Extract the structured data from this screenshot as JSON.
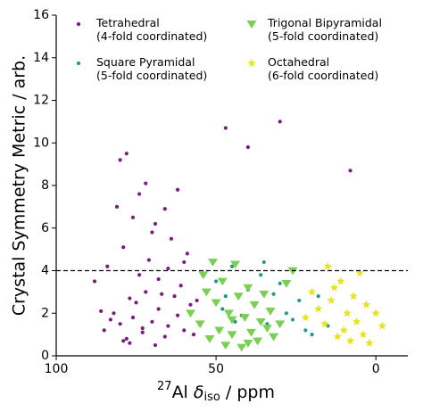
{
  "chart_data": {
    "type": "scatter",
    "ylabel": "Crystal Symmetry Metric / arb.",
    "xlabel_parts": [
      "27",
      "Al ",
      "δ",
      "iso",
      " / ppm"
    ],
    "xlim": [
      100,
      -10
    ],
    "ylim": [
      0,
      16
    ],
    "xticks": [
      100,
      50,
      0
    ],
    "yticks": [
      0,
      2,
      4,
      6,
      8,
      10,
      12,
      14,
      16
    ],
    "hline": 4,
    "legend": "upper center",
    "series": [
      {
        "name": "Tetrahedral\n(4-fold coordinated)",
        "color": "#7a1b80",
        "marker": "circle",
        "x": [
          85,
          82,
          80,
          78,
          76,
          75,
          73,
          72,
          70,
          68,
          66,
          65,
          63,
          62,
          60,
          58,
          88,
          84,
          79,
          77,
          74,
          71,
          69,
          67,
          64,
          61,
          59,
          57,
          86,
          81,
          76,
          72,
          68,
          65,
          80,
          78,
          74,
          70,
          66,
          62,
          77,
          73,
          79,
          69,
          83,
          60,
          56,
          47,
          40,
          30,
          8
        ],
        "values": [
          1.2,
          2.0,
          1.5,
          0.8,
          1.8,
          2.5,
          1.1,
          3.0,
          1.6,
          2.2,
          0.9,
          1.4,
          2.8,
          1.9,
          1.2,
          2.4,
          3.5,
          4.2,
          5.1,
          0.6,
          3.8,
          4.5,
          6.2,
          2.9,
          5.5,
          3.3,
          4.8,
          1.0,
          2.1,
          7.0,
          6.5,
          8.1,
          3.6,
          4.1,
          9.2,
          9.5,
          7.6,
          5.8,
          6.9,
          7.8,
          2.7,
          1.3,
          0.7,
          0.5,
          1.7,
          4.4,
          2.6,
          10.7,
          9.8,
          11.0,
          8.7
        ]
      },
      {
        "name": "Square Pyramidal\n(5-fold coordinated)",
        "color": "#1f9a8a",
        "marker": "circle",
        "x": [
          50,
          47,
          45,
          42,
          40,
          38,
          36,
          34,
          32,
          30,
          28,
          26,
          24,
          22,
          20,
          35,
          44,
          48,
          18,
          15
        ],
        "values": [
          3.5,
          2.8,
          4.2,
          1.9,
          3.1,
          2.4,
          3.8,
          1.5,
          2.9,
          3.4,
          2.0,
          1.7,
          2.6,
          1.2,
          1.0,
          4.4,
          1.6,
          2.2,
          2.8,
          1.4
        ]
      },
      {
        "name": "Trigonal Bipyramidal\n(5-fold coordinated)",
        "color": "#7ad151",
        "marker": "triangle",
        "x": [
          58,
          55,
          53,
          52,
          50,
          49,
          48,
          47,
          46,
          45,
          44,
          43,
          42,
          41,
          40,
          39,
          38,
          37,
          36,
          35,
          34,
          33,
          32,
          30,
          28,
          26,
          54,
          51,
          45,
          40
        ],
        "values": [
          2.0,
          1.5,
          3.0,
          0.8,
          2.5,
          1.2,
          3.5,
          0.5,
          2.0,
          1.0,
          4.3,
          2.8,
          0.4,
          1.8,
          3.2,
          1.1,
          2.4,
          0.7,
          1.6,
          2.9,
          1.3,
          2.1,
          0.9,
          1.5,
          3.4,
          4.0,
          3.8,
          4.4,
          1.7,
          0.6
        ]
      },
      {
        "name": "Octahedral\n(6-fold coordinated)",
        "color": "#e6e31f",
        "marker": "star",
        "x": [
          22,
          20,
          18,
          16,
          15,
          14,
          12,
          11,
          10,
          9,
          8,
          7,
          6,
          5,
          4,
          3,
          2,
          0,
          -2,
          13
        ],
        "values": [
          1.8,
          3.0,
          2.2,
          1.5,
          4.2,
          2.6,
          0.9,
          3.5,
          1.2,
          2.0,
          0.7,
          2.8,
          1.6,
          3.9,
          1.0,
          2.4,
          0.6,
          2.0,
          1.4,
          3.2
        ]
      }
    ]
  }
}
